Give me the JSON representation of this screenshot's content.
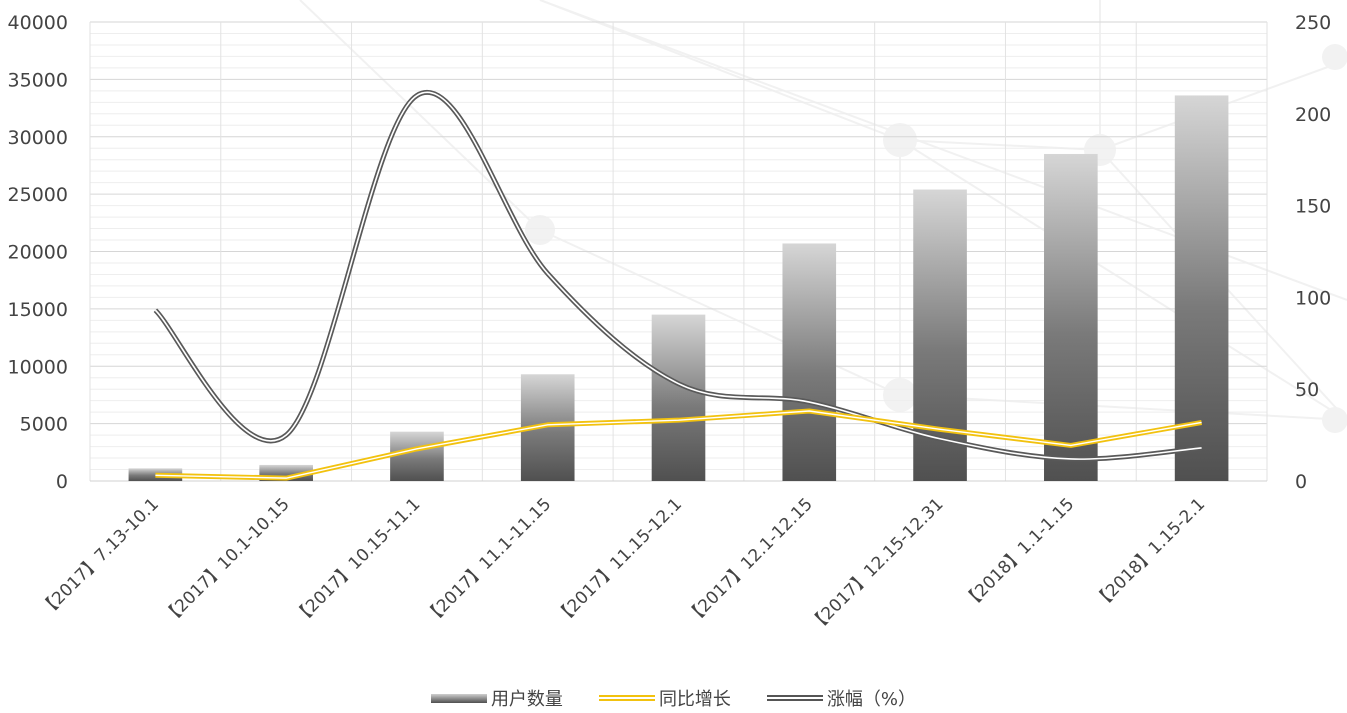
{
  "chart_data": {
    "type": "bar",
    "categories": [
      "【2017】7.13-10.1",
      "【2017】10.1-10.15",
      "【2017】10.15-11.1",
      "【2017】11.1-11.15",
      "【2017】11.15-12.1",
      "【2017】12.1-12.15",
      "【2017】12.15-12.31",
      "【2018】1.1-1.15",
      "【2018】1.15-2.1"
    ],
    "series": [
      {
        "name": "用户数量",
        "type": "bar",
        "axis": "left",
        "values": [
          1100,
          1400,
          4300,
          9300,
          14500,
          20700,
          25400,
          28500,
          33600
        ]
      },
      {
        "name": "同比增长",
        "type": "line",
        "axis": "left",
        "values": [
          500,
          250,
          2800,
          4900,
          5300,
          6100,
          4500,
          3100,
          5100
        ]
      },
      {
        "name": "涨幅（%）",
        "type": "line",
        "axis": "right",
        "values": [
          93,
          25,
          210,
          113,
          53,
          43,
          23,
          12,
          18
        ]
      }
    ],
    "left_axis": {
      "ylim": [
        0,
        40000
      ],
      "ticks": [
        0,
        5000,
        10000,
        15000,
        20000,
        25000,
        30000,
        35000,
        40000
      ]
    },
    "right_axis": {
      "ylim": [
        0,
        250
      ],
      "ticks": [
        0,
        50,
        100,
        150,
        200,
        250
      ]
    },
    "grid": true,
    "legend_position": "bottom",
    "colors": {
      "bar_top": "#d4d4d4",
      "bar_bottom": "#4f4f4f",
      "yoy": "#f2c20f",
      "increase": "#555555",
      "grid": "#d9d9d9"
    }
  },
  "legend": {
    "bar_label": "用户数量",
    "yoy_label": "同比增长",
    "increase_label": "涨幅（%）"
  }
}
